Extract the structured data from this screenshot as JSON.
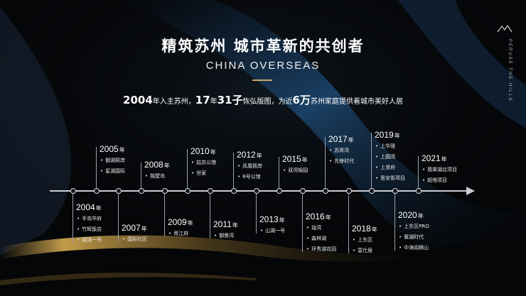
{
  "header": {
    "title": "精筑苏州  城市革新的共创者",
    "subtitle": "CHINA OVERSEAS",
    "side_text": "PERUSE THE HILLS"
  },
  "summary": {
    "year_num": "2004",
    "part1": "年入主苏州，",
    "years_num": "17",
    "part2": "年",
    "count_num": "31",
    "count_unit": "子",
    "part3": "恢弘版图，为近",
    "families_num": "6",
    "families_unit": "万",
    "part4": "苏州家庭提供着城市美好人居"
  },
  "timeline": [
    {
      "year": "2004",
      "unit": "年",
      "items": [
        "半岛华府",
        "竹辉饭店",
        "湖滨一号"
      ]
    },
    {
      "year": "2005",
      "unit": "年",
      "items": [
        "御湖熙岸",
        "星湖国际"
      ]
    },
    {
      "year": "2007",
      "unit": "年",
      "items": [
        "国际社区"
      ]
    },
    {
      "year": "2008",
      "unit": "年",
      "items": [
        "独墅岛"
      ]
    },
    {
      "year": "2009",
      "unit": "年",
      "items": [
        "胥江府"
      ]
    },
    {
      "year": "2010",
      "unit": "年",
      "items": [
        "姑苏公馆",
        "世家"
      ]
    },
    {
      "year": "2011",
      "unit": "年",
      "items": [
        "御景湾"
      ]
    },
    {
      "year": "2012",
      "unit": "年",
      "items": [
        "凤凰熙岸",
        "8号公馆"
      ]
    },
    {
      "year": "2013",
      "unit": "年",
      "items": [
        "山湖一号"
      ]
    },
    {
      "year": "2015",
      "unit": "年",
      "items": [
        "双湾锦园"
      ]
    },
    {
      "year": "2016",
      "unit": "年",
      "items": [
        "珑湾",
        "森林湖",
        "环秀湖花园"
      ]
    },
    {
      "year": "2017",
      "unit": "年",
      "items": [
        "苏胥湾",
        "先锋时代"
      ]
    },
    {
      "year": "2018",
      "unit": "年",
      "items": [
        "上东区",
        "富仕居"
      ]
    },
    {
      "year": "2019",
      "unit": "年",
      "items": [
        "上华璟",
        "上圆湾",
        "上贤府",
        "思安街项目"
      ]
    },
    {
      "year": "2020",
      "unit": "年",
      "items": [
        "上东区PRO",
        "寰湖时代",
        "中海阅狮山"
      ]
    },
    {
      "year": "2021",
      "unit": "年",
      "items": [
        "翡翠湖北项目",
        "超塔项目"
      ]
    }
  ]
}
